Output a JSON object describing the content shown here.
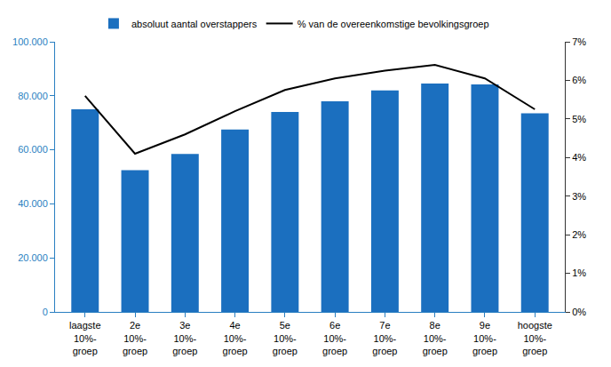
{
  "chart_data": {
    "type": "bar",
    "categories": [
      "laagste\n10%-\ngroep",
      "2e\n10%-\ngroep",
      "3e\n10%-\ngroep",
      "4e\n10%-\ngroep",
      "5e\n10%-\ngroep",
      "6e\n10%-\ngroep",
      "7e\n10%-\ngroep",
      "8e\n10%-\ngroep",
      "9e\n10%-\ngroep",
      "hoogste\n10%-\ngroep"
    ],
    "series": [
      {
        "name": "absoluut aantal overstappers",
        "type": "bar",
        "color": "#1b6fbf",
        "values": [
          75000,
          52500,
          58500,
          67500,
          74000,
          78000,
          82000,
          84500,
          84200,
          73500
        ]
      },
      {
        "name": "% van de overeenkomstige bevolkingsgroep",
        "type": "line",
        "axis": "y2",
        "color": "#000000",
        "values": [
          5.6,
          4.1,
          4.6,
          5.2,
          5.75,
          6.05,
          6.25,
          6.4,
          6.05,
          5.25
        ]
      }
    ],
    "ylim": [
      0,
      100000
    ],
    "yticks": [
      0,
      {
        "value": 20000,
        "label": "20.000"
      },
      {
        "value": 40000,
        "label": "40.000"
      },
      {
        "value": 60000,
        "label": "60.000"
      },
      {
        "value": 80000,
        "label": "80.000"
      },
      {
        "value": 100000,
        "label": "100.000"
      }
    ],
    "y2lim": [
      0,
      7
    ],
    "y2ticks": [
      {
        "value": 0,
        "label": "0%"
      },
      {
        "value": 1,
        "label": "1%"
      },
      {
        "value": 2,
        "label": "2%"
      },
      {
        "value": 3,
        "label": "3%"
      },
      {
        "value": 4,
        "label": "4%"
      },
      {
        "value": 5,
        "label": "5%"
      },
      {
        "value": 6,
        "label": "6%"
      },
      {
        "value": 7,
        "label": "7%"
      }
    ],
    "grid": false,
    "legend": "top"
  }
}
